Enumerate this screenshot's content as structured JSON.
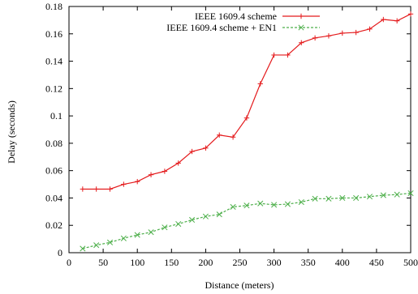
{
  "chart_data": {
    "type": "line",
    "title": "",
    "xlabel": "Distance (meters)",
    "ylabel": "Delay (seconds)",
    "xlim": [
      0,
      500
    ],
    "ylim": [
      0,
      0.18
    ],
    "xticks": [
      0,
      50,
      100,
      150,
      200,
      250,
      300,
      350,
      400,
      450,
      500
    ],
    "xtick_labels": [
      "0",
      "50",
      "100",
      "150",
      "200",
      "250",
      "300",
      "350",
      "400",
      "450",
      "500"
    ],
    "yticks": [
      0,
      0.02,
      0.04,
      0.06,
      0.08,
      0.1,
      0.12,
      0.14,
      0.16,
      0.18
    ],
    "ytick_labels": [
      "0",
      "0.02",
      "0.04",
      "0.06",
      "0.08",
      "0.1",
      "0.12",
      "0.14",
      "0.16",
      "0.18"
    ],
    "grid": false,
    "legend_position": "top-right",
    "x": [
      20,
      40,
      60,
      80,
      100,
      120,
      140,
      160,
      180,
      200,
      220,
      240,
      260,
      280,
      300,
      320,
      340,
      360,
      380,
      400,
      420,
      440,
      460,
      480,
      500
    ],
    "series": [
      {
        "name": "IEEE 1609.4 scheme",
        "color": "#e41a1c",
        "marker": "plus",
        "dash": "solid",
        "values": [
          0.0465,
          0.0465,
          0.0465,
          0.05,
          0.052,
          0.057,
          0.0595,
          0.0655,
          0.074,
          0.0765,
          0.086,
          0.0845,
          0.0985,
          0.1235,
          0.1445,
          0.1445,
          0.1535,
          0.157,
          0.1585,
          0.1605,
          0.161,
          0.1635,
          0.1705,
          0.1695,
          0.1745
        ]
      },
      {
        "name": "IEEE 1609.4 scheme + EN1",
        "color": "#4daf4a",
        "marker": "x",
        "dash": "dashed",
        "values": [
          0.003,
          0.0055,
          0.0075,
          0.0105,
          0.013,
          0.015,
          0.0185,
          0.021,
          0.024,
          0.0265,
          0.028,
          0.0335,
          0.0345,
          0.036,
          0.035,
          0.0355,
          0.037,
          0.0395,
          0.0395,
          0.04,
          0.04,
          0.041,
          0.042,
          0.0425,
          0.0435
        ]
      }
    ]
  }
}
